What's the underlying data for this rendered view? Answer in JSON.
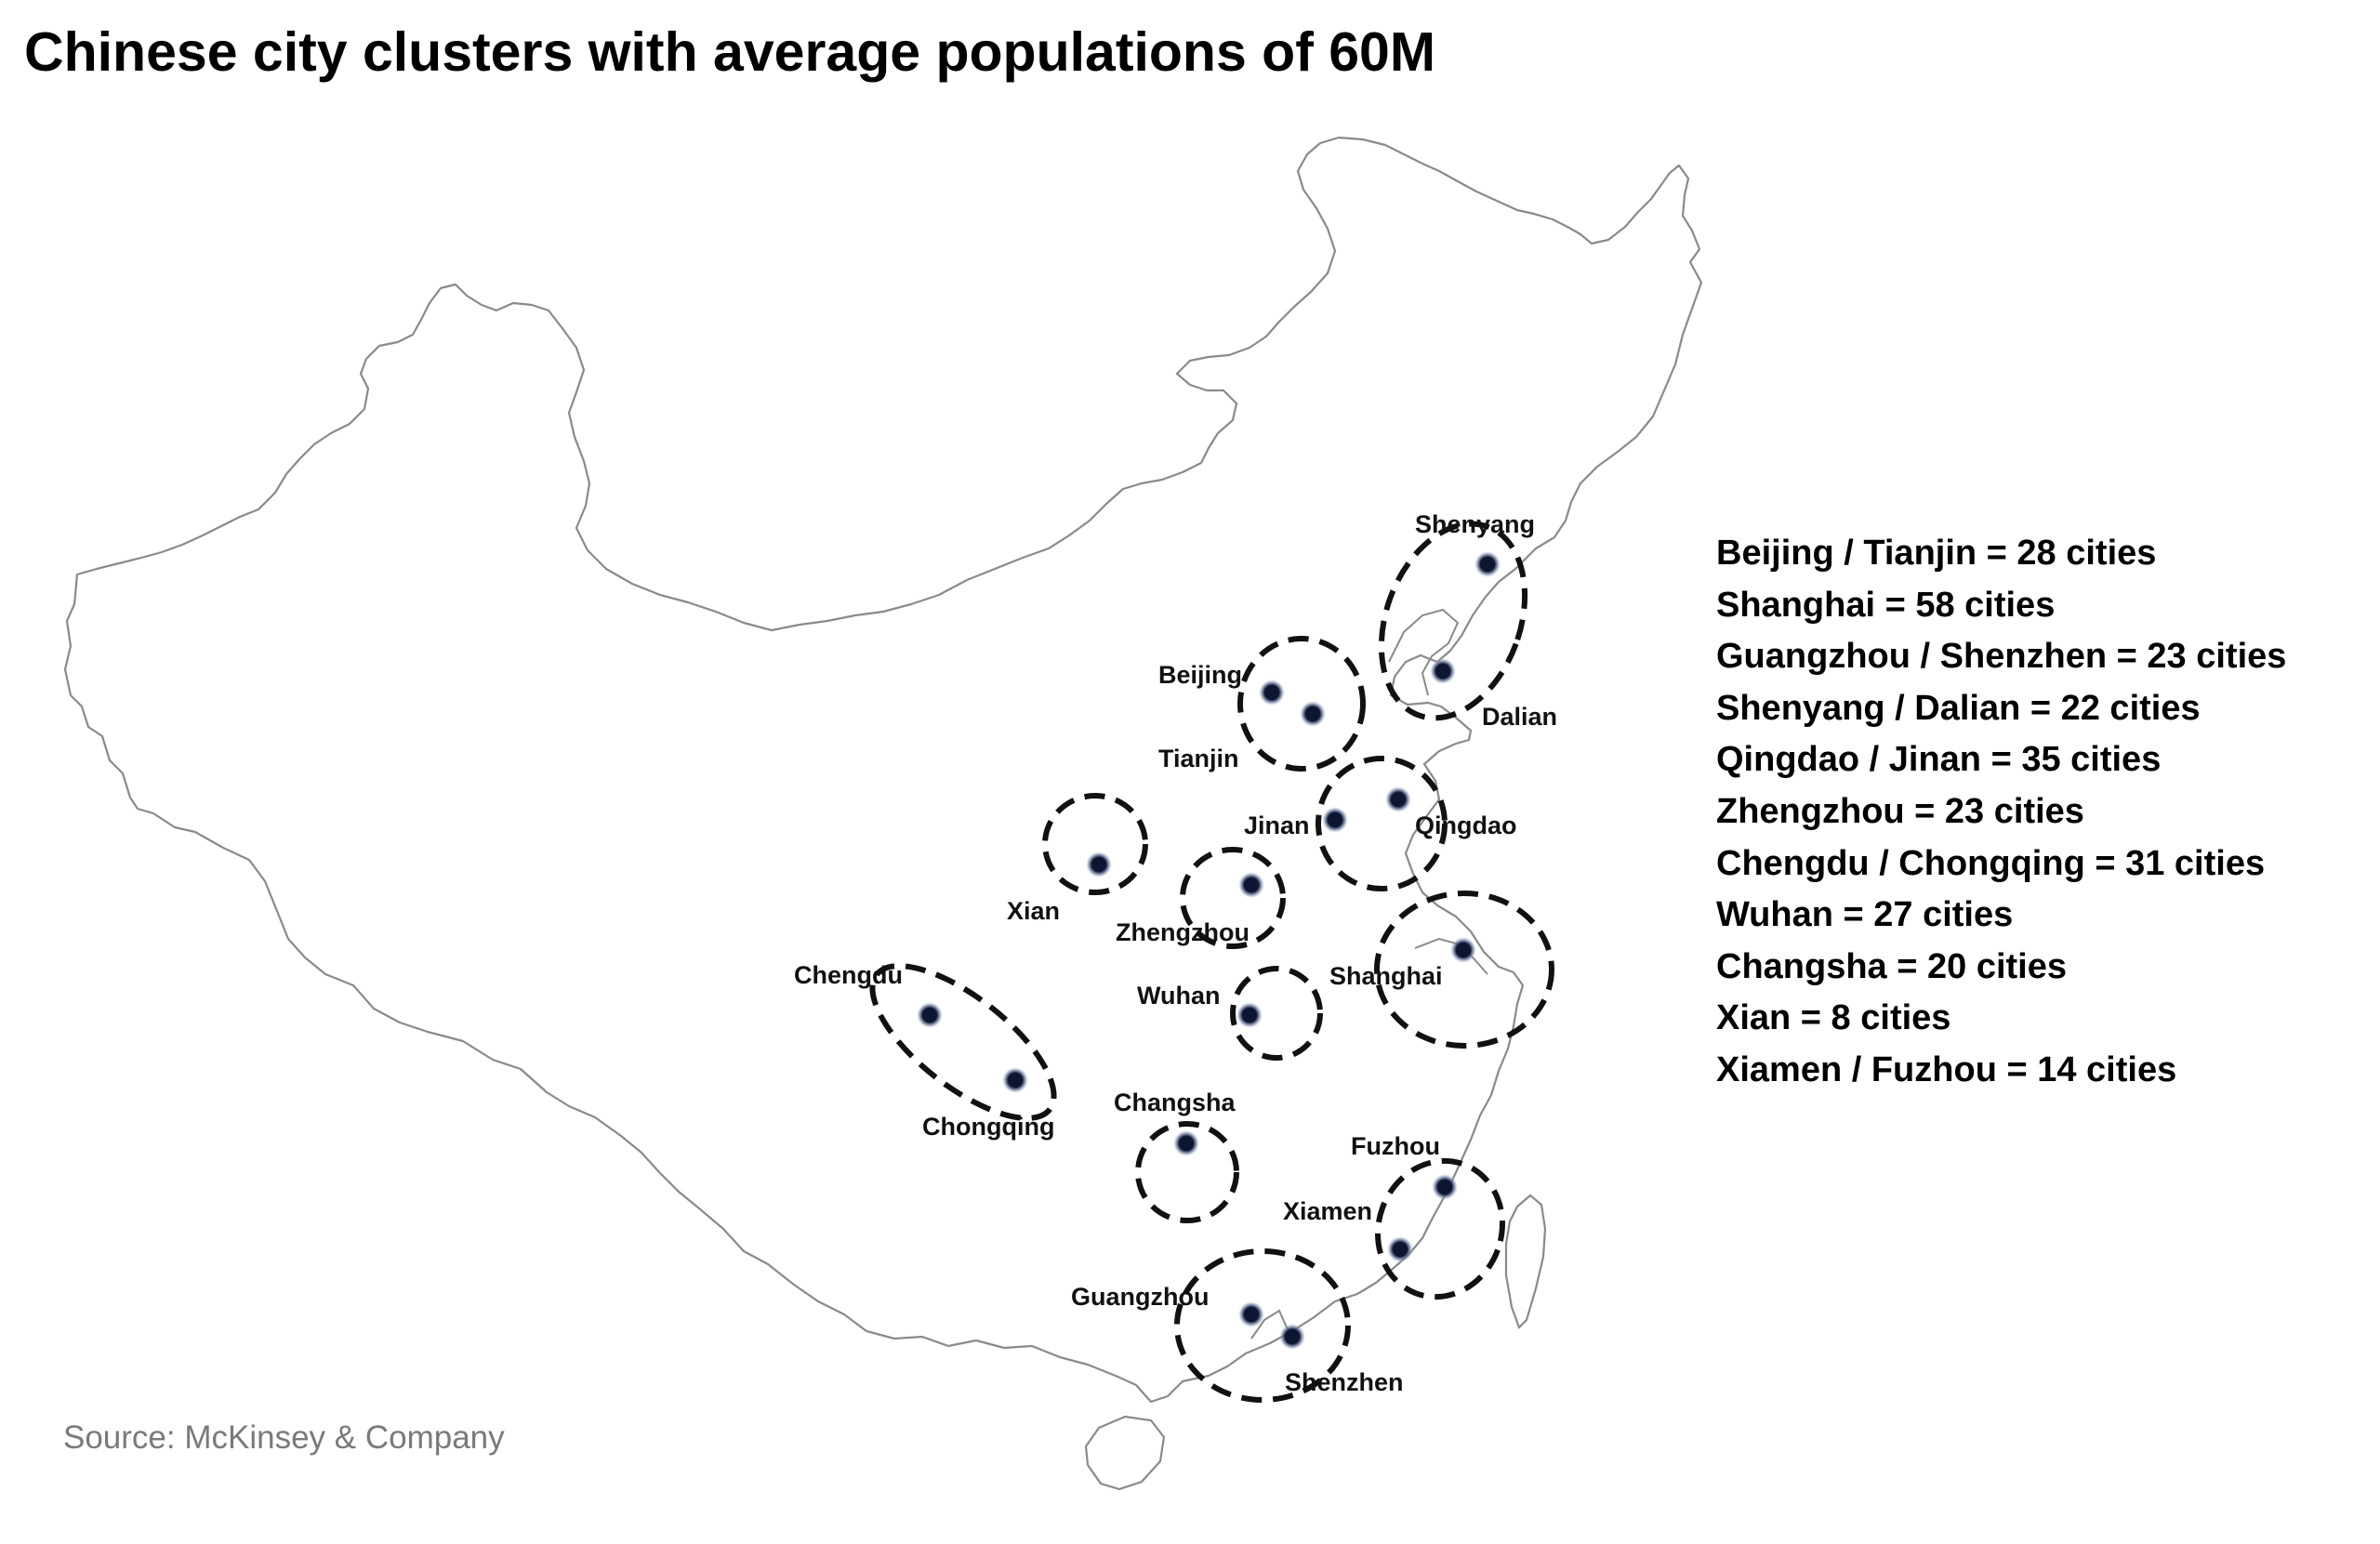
{
  "title": "Chinese city clusters with average populations of 60M",
  "source": "Source: McKinsey & Company",
  "colors": {
    "map_outline": "#8a8a8a",
    "cluster_ring": "#111111",
    "city_dot": "#0d1630",
    "text": "#000000",
    "source_text": "#7a7a7a"
  },
  "cities": {
    "shenyang": "Shenyang",
    "dalian": "Dalian",
    "beijing": "Beijing",
    "tianjin": "Tianjin",
    "jinan": "Jinan",
    "qingdao": "Qingdao",
    "xian": "Xian",
    "zhengzhou": "Zhengzhou",
    "shanghai": "Shanghai",
    "wuhan": "Wuhan",
    "chengdu": "Chengdu",
    "chongqing": "Chongqing",
    "changsha": "Changsha",
    "fuzhou": "Fuzhou",
    "xiamen": "Xiamen",
    "guangzhou": "Guangzhou",
    "shenzhen": "Shenzhen"
  },
  "legend": [
    "Beijing / Tianjin = 28 cities",
    "Shanghai = 58 cities",
    "Guangzhou / Shenzhen = 23 cities",
    "Shenyang / Dalian = 22 cities",
    "Qingdao / Jinan = 35 cities",
    "Zhengzhou = 23 cities",
    "Chengdu / Chongqing = 31 cities",
    "Wuhan = 27 cities",
    "Changsha = 20 cities",
    "Xian = 8 cities",
    "Xiamen / Fuzhou = 14 cities"
  ]
}
